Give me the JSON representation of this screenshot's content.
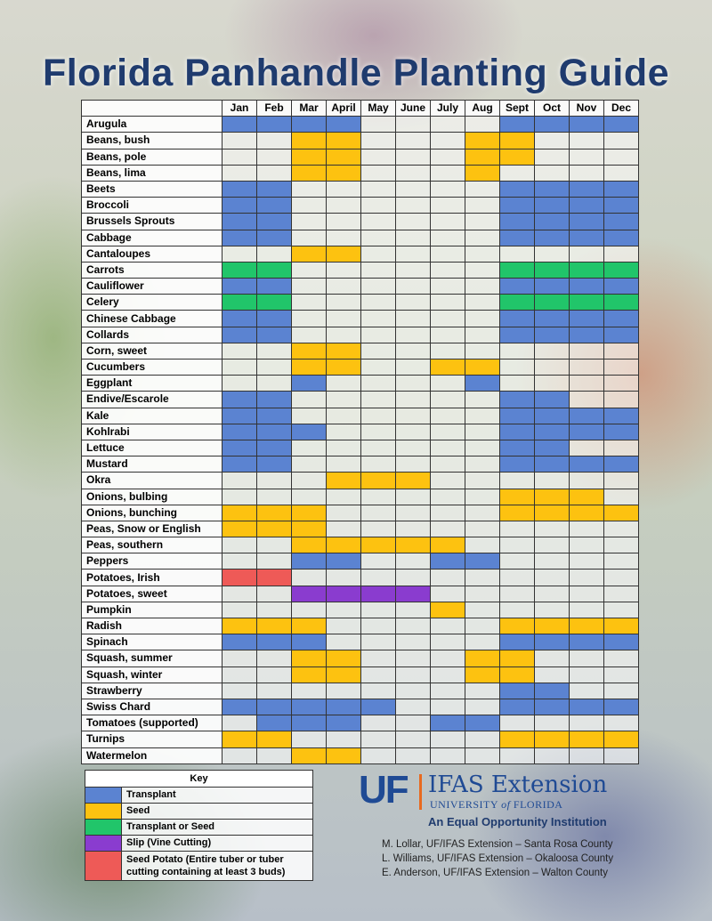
{
  "title": "Florida Panhandle Planting Guide",
  "months": [
    "Jan",
    "Feb",
    "Mar",
    "April",
    "May",
    "June",
    "July",
    "Aug",
    "Sept",
    "Oct",
    "Nov",
    "Dec"
  ],
  "colors": {
    "T": "#5b83d1",
    "S": "#fdc210",
    "B": "#21c56a",
    "V": "#8a3ccf",
    "P": "#ee5a57"
  },
  "crops": [
    {
      "name": "Arugula",
      "m": "TTTT....TTTT"
    },
    {
      "name": "Beans, bush",
      "m": "..SS...SS..."
    },
    {
      "name": "Beans, pole",
      "m": "..SS...SS..."
    },
    {
      "name": "Beans, lima",
      "m": "..SS...S...."
    },
    {
      "name": "Beets",
      "m": "TT......TTTT"
    },
    {
      "name": "Broccoli",
      "m": "TT......TTTT"
    },
    {
      "name": "Brussels Sprouts",
      "m": "TT......TTTT"
    },
    {
      "name": "Cabbage",
      "m": "TT......TTTT"
    },
    {
      "name": "Cantaloupes",
      "m": "..SS........"
    },
    {
      "name": "Carrots",
      "m": "BB......BBBB"
    },
    {
      "name": "Cauliflower",
      "m": "TT......TTTT"
    },
    {
      "name": "Celery",
      "m": "BB......BBBB"
    },
    {
      "name": "Chinese Cabbage",
      "m": "TT......TTTT"
    },
    {
      "name": "Collards",
      "m": "TT......TTTT"
    },
    {
      "name": "Corn, sweet",
      "m": "..SS........"
    },
    {
      "name": "Cucumbers",
      "m": "..SS..SS...."
    },
    {
      "name": "Eggplant",
      "m": "..T....T...."
    },
    {
      "name": "Endive/Escarole",
      "m": "TT......TT.."
    },
    {
      "name": "Kale",
      "m": "TT......TTTT"
    },
    {
      "name": "Kohlrabi",
      "m": "TTT.....TTTT"
    },
    {
      "name": "Lettuce",
      "m": "TT......TT.."
    },
    {
      "name": "Mustard",
      "m": "TT......TTTT"
    },
    {
      "name": "Okra",
      "m": "...SSS......"
    },
    {
      "name": "Onions, bulbing",
      "m": "........SSS."
    },
    {
      "name": "Onions, bunching",
      "m": "SSS.....SSSS"
    },
    {
      "name": "Peas, Snow or English",
      "m": "SSS........."
    },
    {
      "name": "Peas, southern",
      "m": "..SSSSS....."
    },
    {
      "name": "Peppers",
      "m": "..TT..TT...."
    },
    {
      "name": "Potatoes, Irish",
      "m": "PP.........."
    },
    {
      "name": "Potatoes, sweet",
      "m": "..VVVV......"
    },
    {
      "name": "Pumpkin",
      "m": "......S....."
    },
    {
      "name": "Radish",
      "m": "SSS.....SSSS"
    },
    {
      "name": "Spinach",
      "m": "TTT.....TTTT"
    },
    {
      "name": "Squash, summer",
      "m": "..SS...SS..."
    },
    {
      "name": "Squash, winter",
      "m": "..SS...SS..."
    },
    {
      "name": "Strawberry",
      "m": "........TT.."
    },
    {
      "name": "Swiss Chard",
      "m": "TTTTT...TTTT"
    },
    {
      "name": "Tomatoes (supported)",
      "m": ".TTT..TT...."
    },
    {
      "name": "Turnips",
      "m": "SS......SSSS"
    },
    {
      "name": "Watermelon",
      "m": "..SS........"
    }
  ],
  "key": {
    "title": "Key",
    "items": [
      {
        "code": "T",
        "label": "Transplant"
      },
      {
        "code": "S",
        "label": "Seed"
      },
      {
        "code": "B",
        "label": "Transplant or Seed"
      },
      {
        "code": "V",
        "label": "Slip (Vine Cutting)"
      },
      {
        "code": "P",
        "label": "Seed Potato (Entire tuber or tuber cutting containing at least 3 buds)"
      }
    ]
  },
  "logo": {
    "uf": "UF",
    "ifas": "IFAS Extension",
    "university_prefix": "UNIVERSITY",
    "university_of": "of",
    "university_suffix": "FLORIDA",
    "tagline": "An Equal Opportunity Institution"
  },
  "credits": [
    "M. Lollar, UF/IFAS Extension – Santa Rosa County",
    "L. Williams, UF/IFAS Extension – Okaloosa County",
    "E. Anderson, UF/IFAS Extension – Walton County"
  ]
}
